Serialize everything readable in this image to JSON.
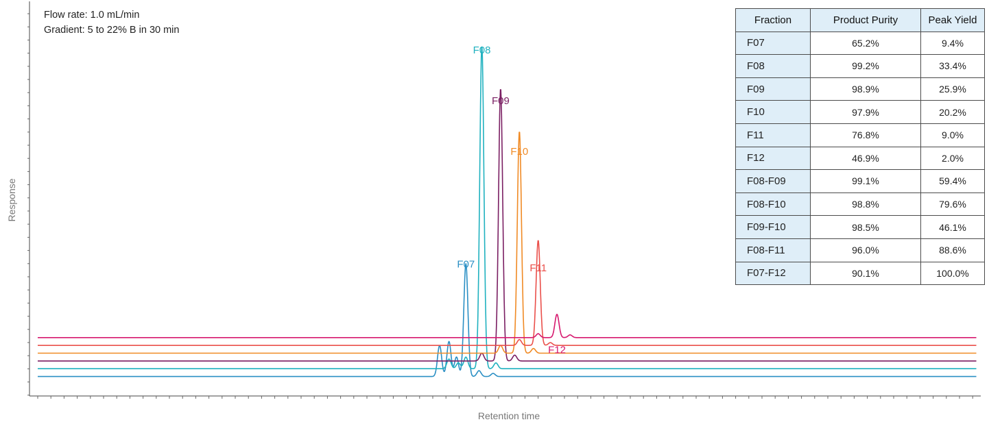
{
  "annotations": {
    "line1": "Flow rate: 1.0 mL/min",
    "line2": "Gradient: 5 to 22% B in 30 min"
  },
  "chart_data": {
    "type": "line",
    "xlabel": "Retention time",
    "ylabel": "Response",
    "xlim": [
      0,
      100
    ],
    "ylim": [
      0,
      100
    ],
    "grid": false,
    "legend": "none",
    "notes": "Axes have no numeric tick labels; values are normalized (x = % of axis width, y = relative response above each trace's own baseline).",
    "series": [
      {
        "name": "F07",
        "color": "#2a8fc4",
        "baseline": 5,
        "peaks": [
          [
            42.8,
            8
          ],
          [
            43.8,
            9
          ],
          [
            44.6,
            5
          ],
          [
            45.6,
            29
          ],
          [
            47.0,
            1.5
          ],
          [
            48.5,
            0.8
          ]
        ],
        "label_at": [
          45.6,
          33
        ]
      },
      {
        "name": "F08",
        "color": "#1fb1bf",
        "baseline": 7,
        "peaks": [
          [
            43.8,
            2.5
          ],
          [
            44.8,
            1.5
          ],
          [
            45.6,
            3
          ],
          [
            47.3,
            83
          ],
          [
            48.8,
            1.5
          ]
        ],
        "label_at": [
          47.3,
          88
        ]
      },
      {
        "name": "F09",
        "color": "#7a1e62",
        "baseline": 9,
        "peaks": [
          [
            47.3,
            2
          ],
          [
            49.3,
            70
          ],
          [
            50.8,
            1.5
          ]
        ],
        "label_at": [
          49.3,
          75
        ]
      },
      {
        "name": "F10",
        "color": "#f08a24",
        "baseline": 11,
        "peaks": [
          [
            49.3,
            2
          ],
          [
            51.3,
            57
          ],
          [
            52.8,
            1.2
          ]
        ],
        "label_at": [
          51.3,
          62
        ]
      },
      {
        "name": "F11",
        "color": "#ea4f4a",
        "baseline": 13,
        "peaks": [
          [
            51.3,
            1.5
          ],
          [
            53.3,
            27
          ],
          [
            54.6,
            0.7
          ]
        ],
        "label_at": [
          53.3,
          32
        ]
      },
      {
        "name": "F12",
        "color": "#d6186e",
        "baseline": 15,
        "peaks": [
          [
            53.3,
            1
          ],
          [
            55.3,
            6
          ],
          [
            56.7,
            0.7
          ]
        ],
        "label_at": [
          55.3,
          11
        ]
      }
    ]
  },
  "table": {
    "headers": [
      "Fraction",
      "Product Purity",
      "Peak Yield"
    ],
    "rows": [
      [
        "F07",
        "65.2%",
        "9.4%"
      ],
      [
        "F08",
        "99.2%",
        "33.4%"
      ],
      [
        "F09",
        "98.9%",
        "25.9%"
      ],
      [
        "F10",
        "97.9%",
        "20.2%"
      ],
      [
        "F11",
        "76.8%",
        "9.0%"
      ],
      [
        "F12",
        "46.9%",
        "2.0%"
      ],
      [
        "F08-F09",
        "99.1%",
        "59.4%"
      ],
      [
        "F08-F10",
        "98.8%",
        "79.6%"
      ],
      [
        "F09-F10",
        "98.5%",
        "46.1%"
      ],
      [
        "F08-F11",
        "96.0%",
        "88.6%"
      ],
      [
        "F07-F12",
        "90.1%",
        "100.0%"
      ]
    ]
  }
}
